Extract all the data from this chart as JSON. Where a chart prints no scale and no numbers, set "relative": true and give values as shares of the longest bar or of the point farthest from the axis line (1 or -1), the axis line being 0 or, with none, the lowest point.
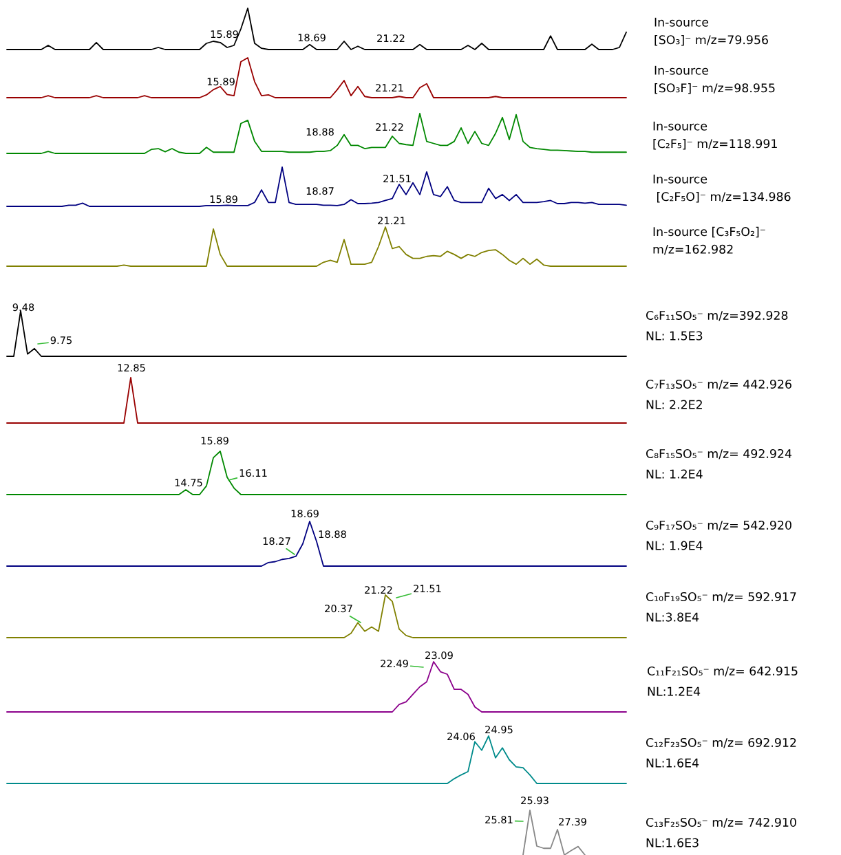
{
  "chart_data": [
    {
      "type": "line",
      "relative": true,
      "tick_labels": false,
      "categories": [
        null,
        null,
        null,
        null,
        null,
        null,
        null,
        null,
        null,
        null,
        null,
        null,
        null,
        null,
        null,
        null,
        null,
        null,
        null,
        null,
        null,
        null,
        null,
        null,
        null,
        null,
        null,
        null,
        null,
        null,
        null,
        null,
        null,
        null,
        null,
        null,
        null,
        null,
        null,
        null,
        null,
        null,
        null,
        null,
        null,
        null,
        null,
        null,
        null,
        null,
        null,
        null,
        null,
        null,
        null,
        null,
        null,
        null,
        null,
        null,
        null,
        null,
        null,
        null,
        null,
        null,
        null,
        null,
        null,
        null,
        null,
        null,
        null,
        null,
        null,
        null,
        null,
        null,
        null,
        null,
        null,
        null,
        null,
        null,
        null,
        null,
        null,
        null,
        null,
        null,
        null
      ],
      "series": [
        {
          "name": "In-source\n[SO₃]⁻ m/z=79.956",
          "color": "#000000",
          "values": [
            0,
            0,
            0,
            0,
            0,
            0,
            0.1,
            0,
            0,
            0,
            0,
            0,
            0,
            0.17,
            0,
            0,
            0,
            0,
            0,
            0,
            0,
            0,
            0.05,
            0,
            0,
            0,
            0,
            0,
            0,
            0.15,
            0.2,
            0.17,
            0.05,
            0.1,
            0.5,
            1.0,
            0.15,
            0.03,
            0,
            0,
            0,
            0,
            0,
            0,
            0.12,
            0,
            0,
            0,
            0,
            0.2,
            0,
            0.08,
            0,
            0,
            0,
            0,
            0,
            0,
            0,
            0,
            0.12,
            0,
            0,
            0,
            0,
            0,
            0,
            0.1,
            0,
            0.15,
            0,
            0,
            0,
            0,
            0,
            0,
            0,
            0,
            0,
            0.33,
            0,
            0,
            0,
            0,
            0,
            0.13,
            0,
            0,
            0,
            0.05,
            0.42
          ]
        }
      ],
      "annotations": [
        "15.89",
        "18.69",
        "21.22"
      ]
    },
    {
      "type": "line",
      "relative": true,
      "tick_labels": false,
      "categories": [
        null,
        null,
        null,
        null,
        null,
        null,
        null,
        null,
        null,
        null,
        null,
        null,
        null,
        null,
        null,
        null,
        null,
        null,
        null,
        null,
        null,
        null,
        null,
        null,
        null,
        null,
        null,
        null,
        null,
        null,
        null,
        null,
        null,
        null,
        null,
        null,
        null,
        null,
        null,
        null,
        null,
        null,
        null,
        null,
        null,
        null,
        null,
        null,
        null,
        null,
        null,
        null,
        null,
        null,
        null,
        null,
        null,
        null,
        null,
        null,
        null,
        null,
        null,
        null,
        null,
        null,
        null,
        null,
        null,
        null,
        null,
        null,
        null,
        null,
        null,
        null,
        null,
        null,
        null,
        null,
        null,
        null,
        null,
        null,
        null,
        null,
        null,
        null,
        null,
        null,
        null
      ],
      "series": [
        {
          "name": "In-source\n[SO₃F]⁻ m/z=98.955",
          "color": "#990000",
          "values": [
            0,
            0,
            0,
            0,
            0,
            0,
            0.05,
            0,
            0,
            0,
            0,
            0,
            0,
            0.05,
            0,
            0,
            0,
            0,
            0,
            0,
            0.05,
            0,
            0,
            0,
            0,
            0,
            0,
            0,
            0,
            0.07,
            0.2,
            0.28,
            0.08,
            0.05,
            0.9,
            1.0,
            0.4,
            0.05,
            0.07,
            0,
            0,
            0,
            0,
            0,
            0,
            0,
            0,
            0,
            0.2,
            0.43,
            0.05,
            0.28,
            0.03,
            0,
            0,
            0,
            0,
            0.03,
            0,
            0,
            0.25,
            0.35,
            0,
            0,
            0,
            0,
            0,
            0,
            0,
            0,
            0,
            0.03,
            0,
            0,
            0,
            0,
            0,
            0,
            0,
            0,
            0,
            0,
            0,
            0,
            0,
            0,
            0,
            0,
            0,
            0,
            0
          ]
        }
      ],
      "annotations": [
        "15.89",
        "21.21"
      ]
    },
    {
      "type": "line",
      "relative": true,
      "tick_labels": false,
      "categories": [
        null,
        null,
        null,
        null,
        null,
        null,
        null,
        null,
        null,
        null,
        null,
        null,
        null,
        null,
        null,
        null,
        null,
        null,
        null,
        null,
        null,
        null,
        null,
        null,
        null,
        null,
        null,
        null,
        null,
        null,
        null,
        null,
        null,
        null,
        null,
        null,
        null,
        null,
        null,
        null,
        null,
        null,
        null,
        null,
        null,
        null,
        null,
        null,
        null,
        null,
        null,
        null,
        null,
        null,
        null,
        null,
        null,
        null,
        null,
        null,
        null,
        null,
        null,
        null,
        null,
        null,
        null,
        null,
        null,
        null,
        null,
        null,
        null,
        null,
        null,
        null,
        null,
        null,
        null,
        null,
        null,
        null,
        null,
        null,
        null,
        null,
        null,
        null,
        null,
        null,
        null
      ],
      "series": [
        {
          "name": "In-source\n[C₂F₅]⁻ m/z=118.991",
          "color": "#008800",
          "values": [
            0,
            0,
            0,
            0,
            0,
            0,
            0.05,
            0,
            0,
            0,
            0,
            0,
            0,
            0,
            0,
            0,
            0,
            0,
            0,
            0,
            0,
            0.1,
            0.12,
            0.04,
            0.12,
            0.03,
            0,
            0,
            0,
            0.15,
            0.03,
            0.03,
            0.03,
            0.03,
            0.75,
            0.83,
            0.3,
            0.05,
            0.05,
            0.05,
            0.05,
            0.03,
            0.03,
            0.03,
            0.03,
            0.05,
            0.05,
            0.07,
            0.2,
            0.47,
            0.2,
            0.2,
            0.12,
            0.15,
            0.15,
            0.15,
            0.43,
            0.25,
            0.22,
            0.2,
            1.0,
            0.3,
            0.25,
            0.2,
            0.2,
            0.3,
            0.64,
            0.25,
            0.55,
            0.25,
            0.2,
            0.5,
            0.9,
            0.35,
            0.97,
            0.3,
            0.15,
            0.12,
            0.1,
            0.08,
            0.08,
            0.07,
            0.06,
            0.05,
            0.05,
            0.03,
            0.03,
            0.03,
            0.03,
            0.03,
            0.03
          ]
        }
      ],
      "annotations": [
        "18.88",
        "21.22"
      ]
    },
    {
      "type": "line",
      "relative": true,
      "tick_labels": false,
      "categories": [
        null,
        null,
        null,
        null,
        null,
        null,
        null,
        null,
        null,
        null,
        null,
        null,
        null,
        null,
        null,
        null,
        null,
        null,
        null,
        null,
        null,
        null,
        null,
        null,
        null,
        null,
        null,
        null,
        null,
        null,
        null,
        null,
        null,
        null,
        null,
        null,
        null,
        null,
        null,
        null,
        null,
        null,
        null,
        null,
        null,
        null,
        null,
        null,
        null,
        null,
        null,
        null,
        null,
        null,
        null,
        null,
        null,
        null,
        null,
        null,
        null,
        null,
        null,
        null,
        null,
        null,
        null,
        null,
        null,
        null,
        null,
        null,
        null,
        null,
        null,
        null,
        null,
        null,
        null,
        null,
        null,
        null,
        null,
        null,
        null,
        null,
        null,
        null,
        null,
        null,
        null
      ],
      "series": [
        {
          "name": "In-source\n [C₂F₅O]⁻ m/z=134.986",
          "color": "#000080",
          "values": [
            0,
            0,
            0,
            0,
            0,
            0,
            0,
            0,
            0,
            0.03,
            0.03,
            0.08,
            0,
            0,
            0,
            0,
            0,
            0,
            0,
            0,
            0,
            0,
            0,
            0,
            0,
            0,
            0,
            0,
            0,
            0.02,
            0.02,
            0.02,
            0.03,
            0.02,
            0.02,
            0.02,
            0.1,
            0.42,
            0.1,
            0.1,
            1.0,
            0.1,
            0.05,
            0.05,
            0.05,
            0.05,
            0.03,
            0.03,
            0.02,
            0.05,
            0.17,
            0.07,
            0.07,
            0.08,
            0.1,
            0.15,
            0.2,
            0.56,
            0.3,
            0.6,
            0.3,
            0.88,
            0.3,
            0.25,
            0.5,
            0.15,
            0.1,
            0.1,
            0.1,
            0.1,
            0.46,
            0.2,
            0.3,
            0.15,
            0.3,
            0.1,
            0.1,
            0.1,
            0.12,
            0.15,
            0.07,
            0.07,
            0.1,
            0.1,
            0.08,
            0.1,
            0.05,
            0.05,
            0.05,
            0.05,
            0.03
          ]
        }
      ],
      "annotations": [
        "15.89",
        "18.87",
        "21.51"
      ]
    },
    {
      "type": "line",
      "relative": true,
      "tick_labels": false,
      "categories": [
        null,
        null,
        null,
        null,
        null,
        null,
        null,
        null,
        null,
        null,
        null,
        null,
        null,
        null,
        null,
        null,
        null,
        null,
        null,
        null,
        null,
        null,
        null,
        null,
        null,
        null,
        null,
        null,
        null,
        null,
        null,
        null,
        null,
        null,
        null,
        null,
        null,
        null,
        null,
        null,
        null,
        null,
        null,
        null,
        null,
        null,
        null,
        null,
        null,
        null,
        null,
        null,
        null,
        null,
        null,
        null,
        null,
        null,
        null,
        null,
        null,
        null,
        null,
        null,
        null,
        null,
        null,
        null,
        null,
        null,
        null,
        null,
        null,
        null,
        null,
        null,
        null,
        null,
        null,
        null,
        null,
        null,
        null,
        null,
        null,
        null,
        null,
        null,
        null,
        null,
        null
      ],
      "series": [
        {
          "name": "In-source [C₃F₅O₂]⁻\nm/z=162.982",
          "color": "#808000",
          "values": [
            0,
            0,
            0,
            0,
            0,
            0,
            0,
            0,
            0,
            0,
            0,
            0,
            0,
            0,
            0,
            0,
            0,
            0.03,
            0,
            0,
            0,
            0,
            0,
            0,
            0,
            0,
            0,
            0,
            0,
            0,
            0.95,
            0.3,
            0,
            0,
            0,
            0,
            0,
            0,
            0,
            0,
            0,
            0,
            0,
            0,
            0,
            0,
            0.1,
            0.15,
            0.1,
            0.68,
            0.05,
            0.05,
            0.05,
            0.1,
            0.5,
            1.0,
            0.45,
            0.5,
            0.3,
            0.2,
            0.2,
            0.25,
            0.27,
            0.25,
            0.38,
            0.3,
            0.2,
            0.3,
            0.25,
            0.35,
            0.4,
            0.42,
            0.3,
            0.15,
            0.05,
            0.2,
            0.05,
            0.18,
            0.03,
            0,
            0,
            0,
            0,
            0,
            0,
            0,
            0,
            0,
            0,
            0,
            0
          ]
        }
      ],
      "annotations": [
        "21.21"
      ]
    },
    {
      "type": "line",
      "relative": true,
      "tick_labels": false,
      "categories": [
        null,
        null,
        null,
        null,
        null,
        null,
        null,
        null,
        null,
        null,
        null,
        null,
        null,
        null,
        null,
        null,
        null,
        null,
        null,
        null,
        null,
        null,
        null,
        null,
        null,
        null,
        null,
        null,
        null,
        null,
        null,
        null,
        null,
        null,
        null,
        null,
        null,
        null,
        null,
        null,
        null,
        null,
        null,
        null,
        null,
        null,
        null,
        null,
        null,
        null,
        null,
        null,
        null,
        null,
        null,
        null,
        null,
        null,
        null,
        null,
        null,
        null,
        null,
        null,
        null,
        null,
        null,
        null,
        null,
        null,
        null,
        null,
        null,
        null,
        null,
        null,
        null,
        null,
        null,
        null,
        null,
        null,
        null,
        null,
        null,
        null,
        null,
        null,
        null,
        null,
        null
      ],
      "series": [
        {
          "name": "C₆F₁₁SO₅⁻ m/z=392.928",
          "color": "#000000",
          "values": [
            0,
            0,
            1.0,
            0.05,
            0.17,
            0,
            0,
            0,
            0,
            0,
            0,
            0,
            0,
            0,
            0,
            0,
            0,
            0,
            0,
            0,
            0,
            0,
            0,
            0,
            0,
            0,
            0,
            0,
            0,
            0,
            0,
            0,
            0,
            0,
            0,
            0,
            0,
            0,
            0,
            0,
            0,
            0,
            0,
            0,
            0,
            0,
            0,
            0,
            0,
            0,
            0,
            0,
            0,
            0,
            0,
            0,
            0,
            0,
            0,
            0,
            0,
            0,
            0,
            0,
            0,
            0,
            0,
            0,
            0,
            0,
            0,
            0,
            0,
            0,
            0,
            0,
            0,
            0,
            0,
            0,
            0,
            0,
            0,
            0,
            0,
            0,
            0,
            0,
            0,
            0,
            0
          ]
        }
      ],
      "annotations": [
        "9.48",
        "9.75",
        "NL: 1.5E3"
      ]
    },
    {
      "type": "line",
      "relative": true,
      "tick_labels": false,
      "categories": [
        null,
        null,
        null,
        null,
        null,
        null,
        null,
        null,
        null,
        null,
        null,
        null,
        null,
        null,
        null,
        null,
        null,
        null,
        null,
        null,
        null,
        null,
        null,
        null,
        null,
        null,
        null,
        null,
        null,
        null,
        null,
        null,
        null,
        null,
        null,
        null,
        null,
        null,
        null,
        null,
        null,
        null,
        null,
        null,
        null,
        null,
        null,
        null,
        null,
        null,
        null,
        null,
        null,
        null,
        null,
        null,
        null,
        null,
        null,
        null,
        null,
        null,
        null,
        null,
        null,
        null,
        null,
        null,
        null,
        null,
        null,
        null,
        null,
        null,
        null,
        null,
        null,
        null,
        null,
        null,
        null,
        null,
        null,
        null,
        null,
        null,
        null,
        null,
        null,
        null,
        null
      ],
      "series": [
        {
          "name": "C₇F₁₃SO₅⁻ m/z= 442.926",
          "color": "#990000",
          "values": [
            0,
            0,
            0,
            0,
            0,
            0,
            0,
            0,
            0,
            0,
            0,
            0,
            0,
            0,
            0,
            0,
            0,
            0,
            1.0,
            0,
            0,
            0,
            0,
            0,
            0,
            0,
            0,
            0,
            0,
            0,
            0,
            0,
            0,
            0,
            0,
            0,
            0,
            0,
            0,
            0,
            0,
            0,
            0,
            0,
            0,
            0,
            0,
            0,
            0,
            0,
            0,
            0,
            0,
            0,
            0,
            0,
            0,
            0,
            0,
            0,
            0,
            0,
            0,
            0,
            0,
            0,
            0,
            0,
            0,
            0,
            0,
            0,
            0,
            0,
            0,
            0,
            0,
            0,
            0,
            0,
            0,
            0,
            0,
            0,
            0,
            0,
            0,
            0,
            0,
            0,
            0
          ]
        }
      ],
      "annotations": [
        "12.85",
        "NL: 2.2E2"
      ]
    },
    {
      "type": "line",
      "relative": true,
      "tick_labels": false,
      "categories": [
        null,
        null,
        null,
        null,
        null,
        null,
        null,
        null,
        null,
        null,
        null,
        null,
        null,
        null,
        null,
        null,
        null,
        null,
        null,
        null,
        null,
        null,
        null,
        null,
        null,
        null,
        null,
        null,
        null,
        null,
        null,
        null,
        null,
        null,
        null,
        null,
        null,
        null,
        null,
        null,
        null,
        null,
        null,
        null,
        null,
        null,
        null,
        null,
        null,
        null,
        null,
        null,
        null,
        null,
        null,
        null,
        null,
        null,
        null,
        null,
        null,
        null,
        null,
        null,
        null,
        null,
        null,
        null,
        null,
        null,
        null,
        null,
        null,
        null,
        null,
        null,
        null,
        null,
        null,
        null,
        null,
        null,
        null,
        null,
        null,
        null,
        null,
        null,
        null,
        null,
        null
      ],
      "series": [
        {
          "name": "C₈F₁₅SO₅⁻ m/z= 492.924",
          "color": "#008800",
          "values": [
            0,
            0,
            0,
            0,
            0,
            0,
            0,
            0,
            0,
            0,
            0,
            0,
            0,
            0,
            0,
            0,
            0,
            0,
            0,
            0,
            0,
            0,
            0,
            0,
            0,
            0,
            0.11,
            0,
            0,
            0.2,
            0.85,
            1.0,
            0.4,
            0.15,
            0,
            0,
            0,
            0,
            0,
            0,
            0,
            0,
            0,
            0,
            0,
            0,
            0,
            0,
            0,
            0,
            0,
            0,
            0,
            0,
            0,
            0,
            0,
            0,
            0,
            0,
            0,
            0,
            0,
            0,
            0,
            0,
            0,
            0,
            0,
            0,
            0,
            0,
            0,
            0,
            0,
            0,
            0,
            0,
            0,
            0,
            0,
            0,
            0,
            0,
            0,
            0,
            0,
            0,
            0,
            0,
            0
          ]
        }
      ],
      "annotations": [
        "14.75",
        "15.89",
        "16.11",
        "NL: 1.2E4"
      ]
    },
    {
      "type": "line",
      "relative": true,
      "tick_labels": false,
      "categories": [
        null,
        null,
        null,
        null,
        null,
        null,
        null,
        null,
        null,
        null,
        null,
        null,
        null,
        null,
        null,
        null,
        null,
        null,
        null,
        null,
        null,
        null,
        null,
        null,
        null,
        null,
        null,
        null,
        null,
        null,
        null,
        null,
        null,
        null,
        null,
        null,
        null,
        null,
        null,
        null,
        null,
        null,
        null,
        null,
        null,
        null,
        null,
        null,
        null,
        null,
        null,
        null,
        null,
        null,
        null,
        null,
        null,
        null,
        null,
        null,
        null,
        null,
        null,
        null,
        null,
        null,
        null,
        null,
        null,
        null,
        null,
        null,
        null,
        null,
        null,
        null,
        null,
        null,
        null,
        null,
        null,
        null,
        null,
        null,
        null,
        null,
        null,
        null,
        null,
        null,
        null
      ],
      "series": [
        {
          "name": "C₉F₁₇SO₅⁻ m/z= 542.920",
          "color": "#000080",
          "values": [
            0,
            0,
            0,
            0,
            0,
            0,
            0,
            0,
            0,
            0,
            0,
            0,
            0,
            0,
            0,
            0,
            0,
            0,
            0,
            0,
            0,
            0,
            0,
            0,
            0,
            0,
            0,
            0,
            0,
            0,
            0,
            0,
            0,
            0,
            0,
            0,
            0,
            0,
            0.08,
            0.1,
            0.15,
            0.17,
            0.22,
            0.5,
            1.0,
            0.55,
            0,
            0,
            0,
            0,
            0,
            0,
            0,
            0,
            0,
            0,
            0,
            0,
            0,
            0,
            0,
            0,
            0,
            0,
            0,
            0,
            0,
            0,
            0,
            0,
            0,
            0,
            0,
            0,
            0,
            0,
            0,
            0,
            0,
            0,
            0,
            0,
            0,
            0,
            0,
            0,
            0,
            0,
            0,
            0,
            0
          ]
        }
      ],
      "annotations": [
        "18.69",
        "18.27",
        "18.88",
        "NL: 1.9E4"
      ]
    },
    {
      "type": "line",
      "relative": true,
      "tick_labels": false,
      "categories": [
        null,
        null,
        null,
        null,
        null,
        null,
        null,
        null,
        null,
        null,
        null,
        null,
        null,
        null,
        null,
        null,
        null,
        null,
        null,
        null,
        null,
        null,
        null,
        null,
        null,
        null,
        null,
        null,
        null,
        null,
        null,
        null,
        null,
        null,
        null,
        null,
        null,
        null,
        null,
        null,
        null,
        null,
        null,
        null,
        null,
        null,
        null,
        null,
        null,
        null,
        null,
        null,
        null,
        null,
        null,
        null,
        null,
        null,
        null,
        null,
        null,
        null,
        null,
        null,
        null,
        null,
        null,
        null,
        null,
        null,
        null,
        null,
        null,
        null,
        null,
        null,
        null,
        null,
        null,
        null,
        null,
        null,
        null,
        null,
        null,
        null,
        null,
        null,
        null,
        null,
        null
      ],
      "series": [
        {
          "name": "C₁₀F₁₉SO₅⁻ m/z= 592.917",
          "color": "#808000",
          "values": [
            0,
            0,
            0,
            0,
            0,
            0,
            0,
            0,
            0,
            0,
            0,
            0,
            0,
            0,
            0,
            0,
            0,
            0,
            0,
            0,
            0,
            0,
            0,
            0,
            0,
            0,
            0,
            0,
            0,
            0,
            0,
            0,
            0,
            0,
            0,
            0,
            0,
            0,
            0,
            0,
            0,
            0,
            0,
            0,
            0,
            0,
            0,
            0,
            0,
            0,
            0.1,
            0.35,
            0.15,
            0.25,
            0.15,
            1.0,
            0.85,
            0.2,
            0.05,
            0,
            0,
            0,
            0,
            0,
            0,
            0,
            0,
            0,
            0,
            0,
            0,
            0,
            0,
            0,
            0,
            0,
            0,
            0,
            0,
            0,
            0,
            0,
            0,
            0,
            0,
            0,
            0,
            0,
            0,
            0,
            0
          ]
        }
      ],
      "annotations": [
        "20.37",
        "21.22",
        "21.51",
        "NL:3.8E4"
      ]
    },
    {
      "type": "line",
      "relative": true,
      "tick_labels": false,
      "categories": [
        null,
        null,
        null,
        null,
        null,
        null,
        null,
        null,
        null,
        null,
        null,
        null,
        null,
        null,
        null,
        null,
        null,
        null,
        null,
        null,
        null,
        null,
        null,
        null,
        null,
        null,
        null,
        null,
        null,
        null,
        null,
        null,
        null,
        null,
        null,
        null,
        null,
        null,
        null,
        null,
        null,
        null,
        null,
        null,
        null,
        null,
        null,
        null,
        null,
        null,
        null,
        null,
        null,
        null,
        null,
        null,
        null,
        null,
        null,
        null,
        null,
        null,
        null,
        null,
        null,
        null,
        null,
        null,
        null,
        null,
        null,
        null,
        null,
        null,
        null,
        null,
        null,
        null,
        null,
        null,
        null,
        null,
        null,
        null,
        null,
        null,
        null,
        null,
        null,
        null,
        null
      ],
      "series": [
        {
          "name": "C₁₁F₂₁SO₅⁻ m/z= 642.915",
          "color": "#8b008b",
          "values": [
            0,
            0,
            0,
            0,
            0,
            0,
            0,
            0,
            0,
            0,
            0,
            0,
            0,
            0,
            0,
            0,
            0,
            0,
            0,
            0,
            0,
            0,
            0,
            0,
            0,
            0,
            0,
            0,
            0,
            0,
            0,
            0,
            0,
            0,
            0,
            0,
            0,
            0,
            0,
            0,
            0,
            0,
            0,
            0,
            0,
            0,
            0,
            0,
            0,
            0,
            0,
            0,
            0,
            0,
            0,
            0,
            0,
            0.15,
            0.2,
            0.35,
            0.5,
            0.6,
            1.0,
            0.8,
            0.75,
            0.45,
            0.45,
            0.35,
            0.1,
            0,
            0,
            0,
            0,
            0,
            0,
            0,
            0,
            0,
            0,
            0,
            0,
            0,
            0,
            0,
            0,
            0,
            0,
            0,
            0,
            0,
            0
          ]
        }
      ],
      "annotations": [
        "23.09",
        "22.49",
        "NL:1.2E4"
      ]
    },
    {
      "type": "line",
      "relative": true,
      "tick_labels": false,
      "categories": [
        null,
        null,
        null,
        null,
        null,
        null,
        null,
        null,
        null,
        null,
        null,
        null,
        null,
        null,
        null,
        null,
        null,
        null,
        null,
        null,
        null,
        null,
        null,
        null,
        null,
        null,
        null,
        null,
        null,
        null,
        null,
        null,
        null,
        null,
        null,
        null,
        null,
        null,
        null,
        null,
        null,
        null,
        null,
        null,
        null,
        null,
        null,
        null,
        null,
        null,
        null,
        null,
        null,
        null,
        null,
        null,
        null,
        null,
        null,
        null,
        null,
        null,
        null,
        null,
        null,
        null,
        null,
        null,
        null,
        null,
        null,
        null,
        null,
        null,
        null,
        null,
        null,
        null,
        null,
        null,
        null,
        null,
        null,
        null,
        null,
        null,
        null,
        null,
        null,
        null,
        null
      ],
      "series": [
        {
          "name": "C₁₂F₂₃SO₅⁻ m/z= 692.912",
          "color": "#008b8b",
          "values": [
            0,
            0,
            0,
            0,
            0,
            0,
            0,
            0,
            0,
            0,
            0,
            0,
            0,
            0,
            0,
            0,
            0,
            0,
            0,
            0,
            0,
            0,
            0,
            0,
            0,
            0,
            0,
            0,
            0,
            0,
            0,
            0,
            0,
            0,
            0,
            0,
            0,
            0,
            0,
            0,
            0,
            0,
            0,
            0,
            0,
            0,
            0,
            0,
            0,
            0,
            0,
            0,
            0,
            0,
            0,
            0,
            0,
            0,
            0,
            0,
            0,
            0,
            0,
            0,
            0,
            0.1,
            0.18,
            0.25,
            0.88,
            0.7,
            1.0,
            0.54,
            0.75,
            0.5,
            0.35,
            0.33,
            0.18,
            0,
            0,
            0,
            0,
            0,
            0,
            0,
            0,
            0,
            0,
            0,
            0,
            0,
            0
          ]
        }
      ],
      "annotations": [
        "24.06",
        "24.95",
        "NL:1.6E4"
      ]
    },
    {
      "type": "line",
      "relative": true,
      "tick_labels": false,
      "categories": [
        null,
        null,
        null,
        null,
        null,
        null,
        null,
        null,
        null,
        null,
        null,
        null,
        null,
        null,
        null,
        null,
        null,
        null,
        null,
        null,
        null,
        null,
        null,
        null,
        null,
        null,
        null,
        null,
        null,
        null,
        null,
        null,
        null,
        null,
        null,
        null,
        null,
        null,
        null,
        null,
        null,
        null,
        null,
        null,
        null,
        null,
        null,
        null,
        null,
        null,
        null,
        null,
        null,
        null,
        null,
        null,
        null,
        null,
        null,
        null,
        null,
        null,
        null,
        null,
        null,
        null,
        null,
        null,
        null,
        null,
        null,
        null,
        null,
        null,
        null,
        null,
        null,
        null,
        null,
        null,
        null,
        null,
        null,
        null,
        null,
        null,
        null,
        null,
        null,
        null,
        null
      ],
      "series": [
        {
          "name": "C₁₃F₂₅SO₅⁻ m/z= 742.910",
          "color": "#888888",
          "values": [
            null,
            null,
            null,
            null,
            null,
            null,
            null,
            null,
            null,
            null,
            null,
            null,
            null,
            null,
            null,
            null,
            null,
            null,
            null,
            null,
            null,
            null,
            null,
            null,
            null,
            null,
            null,
            null,
            null,
            null,
            null,
            null,
            null,
            null,
            null,
            null,
            null,
            null,
            null,
            null,
            null,
            null,
            null,
            null,
            null,
            null,
            null,
            null,
            null,
            null,
            null,
            null,
            null,
            null,
            null,
            null,
            null,
            null,
            null,
            null,
            null,
            null,
            null,
            null,
            null,
            null,
            null,
            null,
            null,
            null,
            null,
            null,
            null,
            null,
            null,
            0,
            1.0,
            0.2,
            0.15,
            0.15,
            0.57,
            0,
            0.1,
            0.19,
            0,
            null,
            null,
            null,
            null,
            null,
            null
          ]
        }
      ],
      "annotations": [
        "25.93",
        "25.81",
        "27.39",
        "NL:1.6E3"
      ]
    }
  ]
}
